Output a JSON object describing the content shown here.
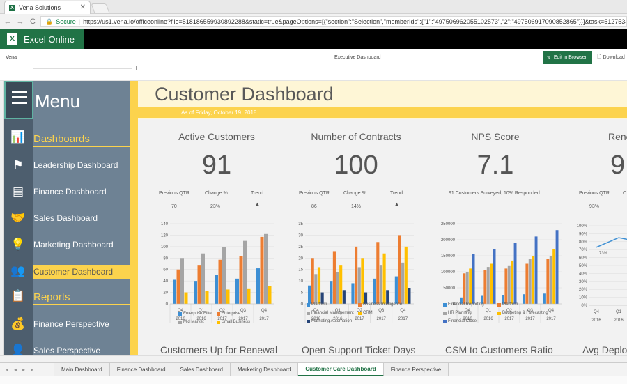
{
  "browser": {
    "tab_title": "Vena Solutions",
    "secure_label": "Secure",
    "url": "https://us1.vena.io/officeonline?file=518186559930892288&static=true&pageOptions=[{\"section\":\"Selection\",\"memberIds\":{\"1\":\"497506962055102573\",\"2\":\"497506917090852865\"}}]&task=51275349..."
  },
  "excel": {
    "brand": "Excel Online"
  },
  "workbook": {
    "left": "Vena",
    "title": "Executive Dashboard",
    "edit_label": "Edit in Browser",
    "download_label": "Download"
  },
  "sidebar": {
    "menu_label": "Menu",
    "items": [
      {
        "label": "Dashboards"
      },
      {
        "label": "Leadership Dashboard"
      },
      {
        "label": "Finance Dashboard"
      },
      {
        "label": "Sales Dashboard"
      },
      {
        "label": "Marketing Dashboard"
      },
      {
        "label": "Customer Dashboard"
      },
      {
        "label": "Reports"
      },
      {
        "label": "Finance Perspective"
      },
      {
        "label": "Sales Perspective"
      }
    ]
  },
  "dashboard": {
    "title": "Customer Dashboard",
    "as_of": "As of Friday, October 19, 2018",
    "metrics": [
      {
        "title": "Active Customers",
        "value": "91",
        "prev_label": "Previous QTR",
        "prev": "70",
        "change_label": "Change %",
        "change": "23%",
        "trend_label": "Trend"
      },
      {
        "title": "Number of Contracts",
        "value": "100",
        "prev_label": "Previous QTR",
        "prev": "86",
        "change_label": "Change %",
        "change": "14%",
        "trend_label": "Trend"
      },
      {
        "title": "NPS Score",
        "value": "7.1",
        "note": "91 Customers Surveyed, 10% Responded"
      },
      {
        "title": "Rene",
        "value": "9",
        "prev_label": "Previous QTR",
        "prev": "93%",
        "change_label": "C"
      }
    ],
    "bottom_titles": [
      "Customers Up for Renewal",
      "Open Support Ticket Days",
      "CSM to Customers Ratio",
      "Avg Deplo"
    ]
  },
  "chart_data": [
    {
      "type": "bar",
      "categories": [
        "Q4 2016",
        "Q1 2016",
        "Q2 2017",
        "Q3 2017",
        "Q4 2017"
      ],
      "ylim": [
        0,
        140
      ],
      "yticks": [
        0,
        20,
        40,
        60,
        80,
        100,
        120,
        140
      ],
      "series": [
        {
          "name": "Enterprise Elite",
          "values": [
            42,
            40,
            50,
            44,
            62
          ]
        },
        {
          "name": "Enterprise",
          "values": [
            60,
            68,
            77,
            83,
            117
          ]
        },
        {
          "name": "Mid Market",
          "values": [
            80,
            88,
            99,
            110,
            122
          ]
        },
        {
          "name": "Small Business",
          "values": [
            20,
            22,
            25,
            27,
            31
          ]
        }
      ]
    },
    {
      "type": "bar",
      "categories": [
        "Q4 2016",
        "Q1 2016",
        "Q2 2017",
        "Q3 2017",
        "Q4 2017"
      ],
      "ylim": [
        0,
        35
      ],
      "yticks": [
        0,
        5,
        10,
        15,
        20,
        25,
        30,
        35
      ],
      "series": [
        {
          "name": "Platform",
          "values": [
            8,
            10,
            9,
            11,
            12
          ]
        },
        {
          "name": "Business Intelligence",
          "values": [
            20,
            23,
            25,
            27,
            30
          ]
        },
        {
          "name": "Financial Management",
          "values": [
            13,
            14,
            16,
            17,
            18
          ]
        },
        {
          "name": "CRM",
          "values": [
            16,
            17,
            20,
            22,
            25
          ]
        },
        {
          "name": "Marketing Automation",
          "values": [
            5,
            6,
            5,
            6,
            7
          ]
        }
      ]
    },
    {
      "type": "bar",
      "categories": [
        "Q4 2016",
        "Q1 2016",
        "Q2 2017",
        "Q3 2017",
        "Q4 2017"
      ],
      "ylim": [
        0,
        250000
      ],
      "yticks": [
        0,
        50000,
        100000,
        150000,
        200000,
        250000
      ],
      "series": [
        {
          "name": "Financial Reporting",
          "values": [
            20000,
            25000,
            28000,
            30000,
            32000
          ]
        },
        {
          "name": "Platform",
          "values": [
            95000,
            105000,
            110000,
            125000,
            140000
          ]
        },
        {
          "name": "HR Planning",
          "values": [
            100000,
            115000,
            120000,
            140000,
            150000
          ]
        },
        {
          "name": "Budgeting & Forecasting",
          "values": [
            110000,
            125000,
            135000,
            150000,
            170000
          ]
        },
        {
          "name": "Financial Close",
          "values": [
            155000,
            170000,
            190000,
            210000,
            230000
          ]
        }
      ]
    },
    {
      "type": "line",
      "categories": [
        "Q4 2016",
        "Q1 2016"
      ],
      "ylim": [
        0,
        100
      ],
      "yticks": [
        "0%",
        "10%",
        "20%",
        "30%",
        "40%",
        "50%",
        "60%",
        "70%",
        "80%",
        "90%",
        "100%"
      ],
      "series": [
        {
          "name": "",
          "values": [
            73,
            85
          ]
        }
      ],
      "data_labels": [
        "73%"
      ]
    }
  ],
  "sheet_tabs": [
    {
      "label": "Main Dashboard"
    },
    {
      "label": "Finance Dashboard"
    },
    {
      "label": "Sales Dashboard"
    },
    {
      "label": "Marketing Dashboard"
    },
    {
      "label": "Customer Care Dashboard",
      "active": true
    },
    {
      "label": "Finance Perspective"
    }
  ],
  "colors": {
    "excel_green": "#217346",
    "accent_yellow": "#fcd34d",
    "sidebar": "#6e8294",
    "series_blue": "#3d8fd4",
    "series_orange": "#ed7d31",
    "series_gray": "#a5a5a5",
    "series_yellow": "#ffc000"
  }
}
